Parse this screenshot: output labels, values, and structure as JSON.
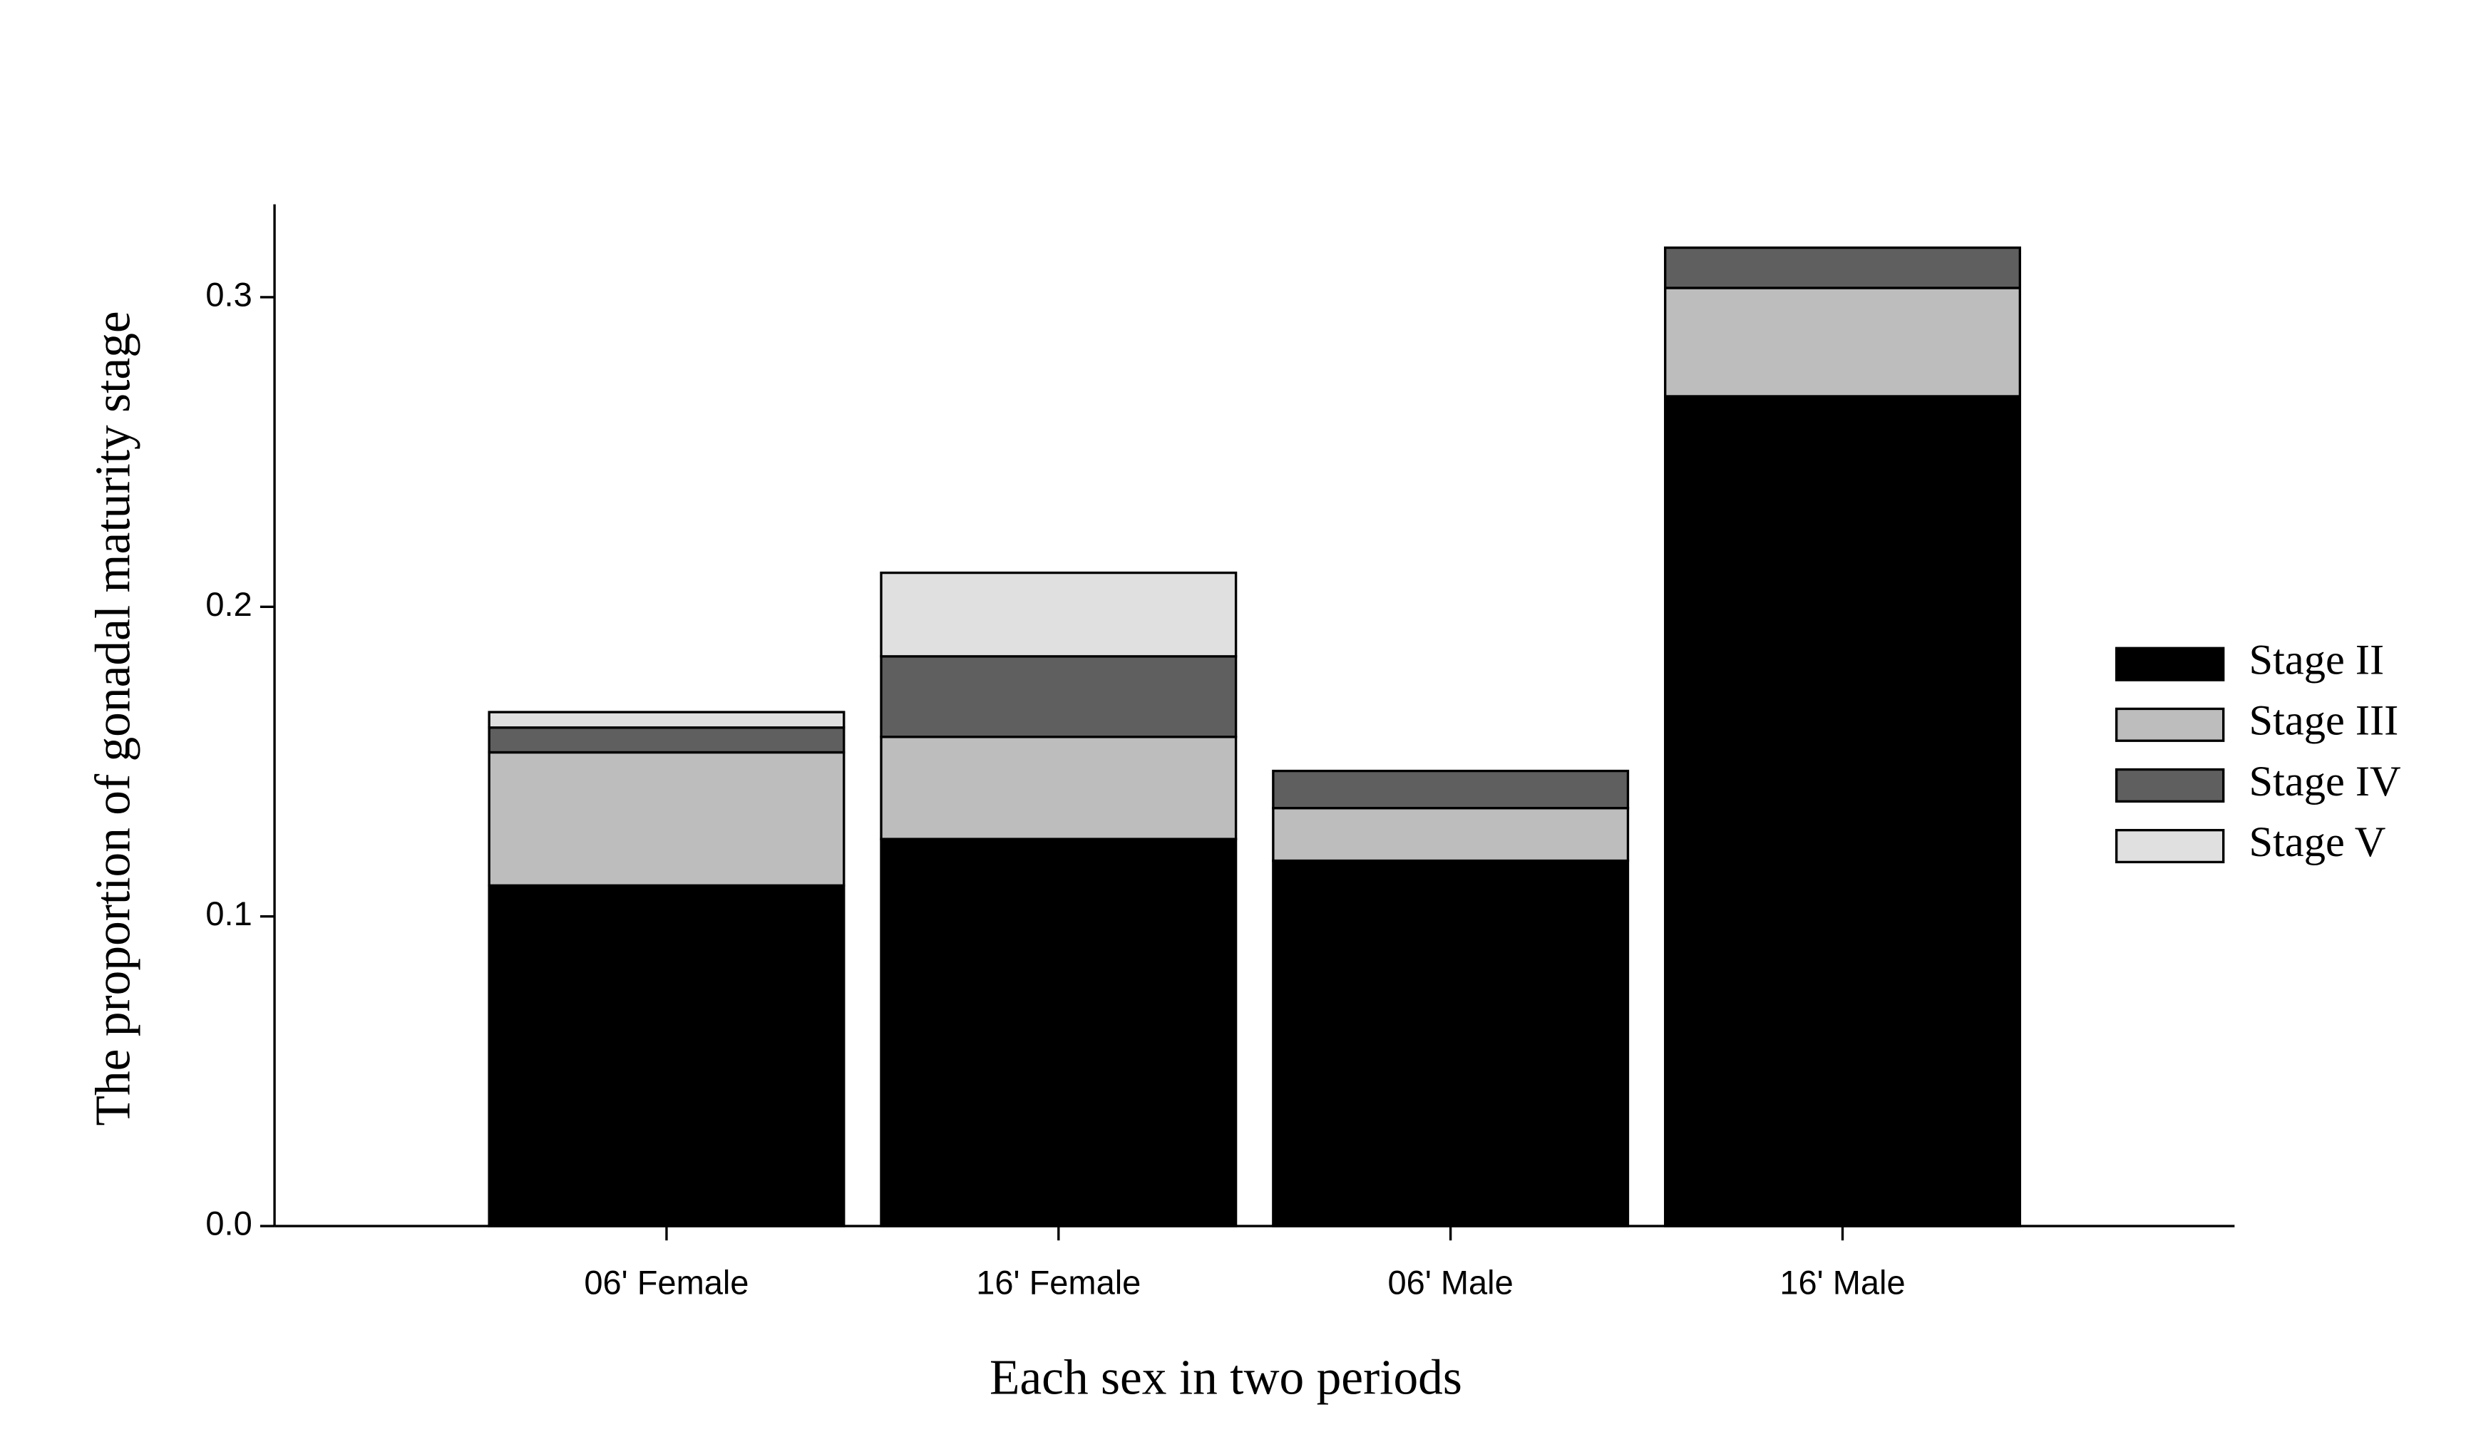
{
  "chart_data": {
    "type": "stacked-bar",
    "x_label": "Each sex in two periods",
    "y_label": "The proportion of gonadal maturity stage",
    "categories": [
      "06' Female",
      "16' Female",
      "06' Male",
      "16' Male"
    ],
    "series": [
      {
        "name": "Stage II",
        "color": "#000000",
        "values": [
          0.11,
          0.125,
          0.118,
          0.268
        ]
      },
      {
        "name": "Stage III",
        "color": "#bdbdbd",
        "values": [
          0.043,
          0.033,
          0.017,
          0.035
        ]
      },
      {
        "name": "Stage IV",
        "color": "#5f5f5f",
        "values": [
          0.008,
          0.026,
          0.012,
          0.013
        ]
      },
      {
        "name": "Stage V",
        "color": "#e0e0e0",
        "values": [
          0.005,
          0.027,
          0,
          0
        ]
      }
    ],
    "ylim": [
      0,
      0.33
    ],
    "yticks": [
      {
        "value": 0,
        "label": "0.0"
      },
      0.1,
      0.2,
      0.3
    ],
    "legend": "right"
  }
}
